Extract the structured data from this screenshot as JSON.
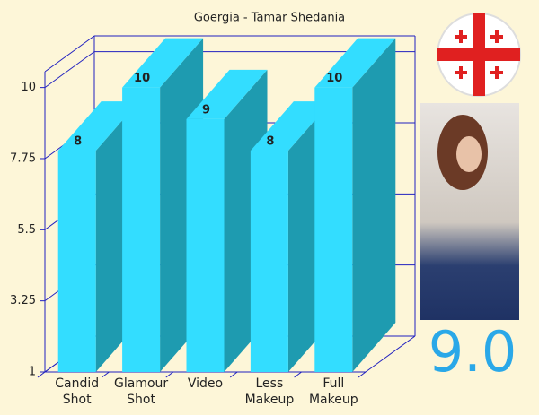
{
  "chart_data": {
    "type": "bar",
    "title": "Goergia - Tamar Shedania",
    "categories": [
      "Candid Shot",
      "Glamour Shot",
      "Video",
      "Less Makeup",
      "Full Makeup"
    ],
    "values": [
      8,
      10,
      9,
      8,
      10
    ],
    "color": "#33ddff",
    "ylim": [
      1,
      10.5
    ],
    "yticks": [
      1,
      3.25,
      5.5,
      7.75,
      10
    ],
    "grid": true
  },
  "score": "9.0"
}
